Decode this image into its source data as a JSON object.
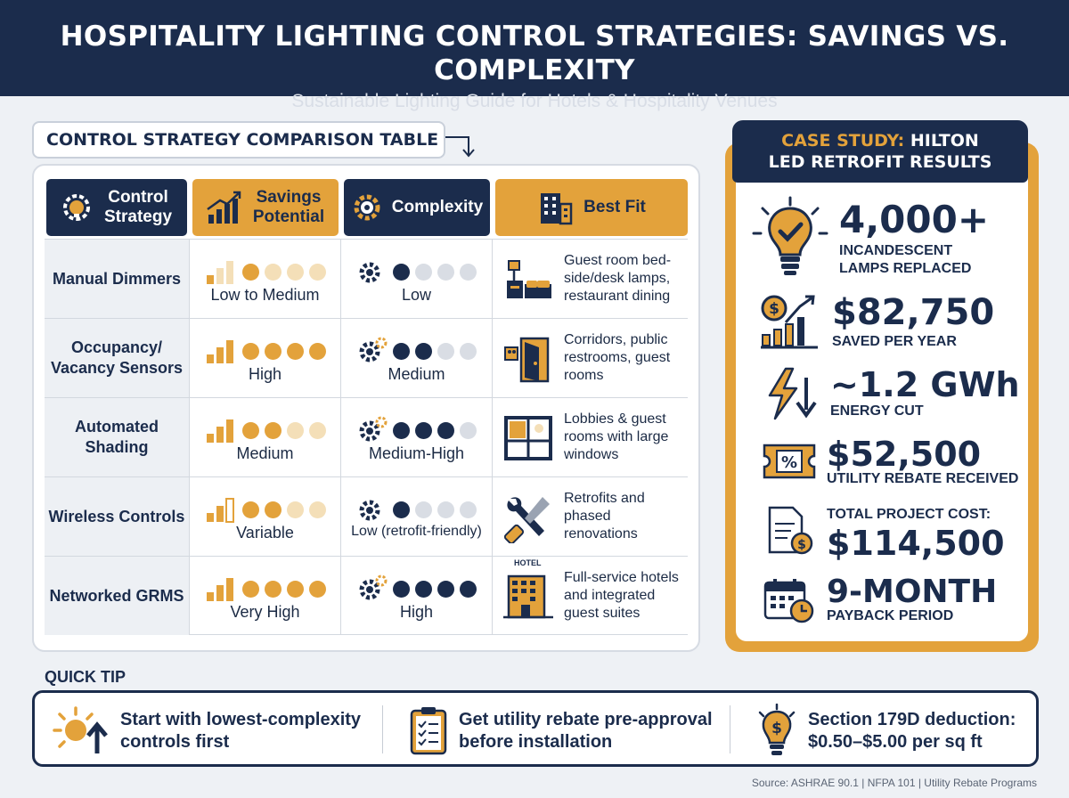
{
  "header": {
    "title": "HOSPITALITY LIGHTING CONTROL STRATEGIES: SAVINGS VS. COMPLEXITY",
    "subtitle": "Sustainable Lighting Guide for Hotels & Hospitality Venues"
  },
  "table": {
    "title": "CONTROL STRATEGY COMPARISON TABLE",
    "columns": [
      "Control Strategy",
      "Savings Potential",
      "Complexity",
      "Best Fit"
    ],
    "rows": [
      {
        "strategy": "Manual Dimmers",
        "savings_label": "Low to Medium",
        "savings_level": 1.5,
        "complexity_label": "Low",
        "complexity_level": 1,
        "best_fit": "Guest room bed-side/desk lamps, restaurant dining",
        "fit_icon": "bed-lamp-icon"
      },
      {
        "strategy": "Occupancy/ Vacancy Sensors",
        "savings_label": "High",
        "savings_level": 4,
        "complexity_label": "Medium",
        "complexity_level": 2,
        "best_fit": "Corridors, public restrooms, guest rooms",
        "fit_icon": "door-icon"
      },
      {
        "strategy": "Automated Shading",
        "savings_label": "Medium",
        "savings_level": 2,
        "complexity_label": "Medium-High",
        "complexity_level": 3,
        "best_fit": "Lobbies & guest rooms with large windows",
        "fit_icon": "window-icon"
      },
      {
        "strategy": "Wireless Controls",
        "savings_label": "Variable",
        "savings_level": 2,
        "complexity_label": "Low (retrofit-friendly)",
        "complexity_level": 1,
        "best_fit": "Retrofits and phased renovations",
        "fit_icon": "tools-icon"
      },
      {
        "strategy": "Networked GRMS",
        "savings_label": "Very High",
        "savings_level": 4,
        "complexity_label": "High",
        "complexity_level": 4,
        "best_fit": "Full-service hotels and integrated guest suites",
        "fit_icon": "hotel-building-icon"
      }
    ],
    "hotel_sign": "HOTEL"
  },
  "case_study": {
    "title_accent": "CASE STUDY:",
    "title_rest": "HILTON",
    "title_line2": "LED RETROFIT RESULTS",
    "stats": [
      {
        "value": "4,000+",
        "label": "INCANDESCENT LAMPS REPLACED",
        "icon": "lightbulb-check-icon"
      },
      {
        "value": "$82,750",
        "label": "SAVED PER YEAR",
        "icon": "money-growth-icon"
      },
      {
        "value": "~1.2 GWh",
        "label": "ENERGY CUT",
        "icon": "energy-down-icon"
      },
      {
        "value": "$52,500",
        "label": "UTILITY REBATE RECEIVED",
        "icon": "rebate-ticket-icon"
      },
      {
        "value": "$114,500",
        "label": "TOTAL PROJECT COST:",
        "icon": "invoice-icon"
      },
      {
        "value": "9-MONTH",
        "label": "PAYBACK PERIOD",
        "icon": "calendar-clock-icon"
      }
    ]
  },
  "quick_tip": {
    "label": "QUICK TIP",
    "tips": [
      {
        "text": "Start with lowest-complexity controls first",
        "icon": "sun-arrow-icon"
      },
      {
        "text": "Get utility rebate pre-approval before installation",
        "icon": "clipboard-icon"
      },
      {
        "text": "Section 179D deduction: $0.50–$5.00 per sq ft",
        "icon": "dollar-bulb-icon"
      }
    ]
  },
  "source": "Source: ASHRAE 90.1 | NFPA 101 | Utility Rebate Programs",
  "colors": {
    "navy": "#1b2c4c",
    "gold": "#e3a23b",
    "pale_gold": "#f4dfb8",
    "light_gray": "#d9dde4"
  }
}
